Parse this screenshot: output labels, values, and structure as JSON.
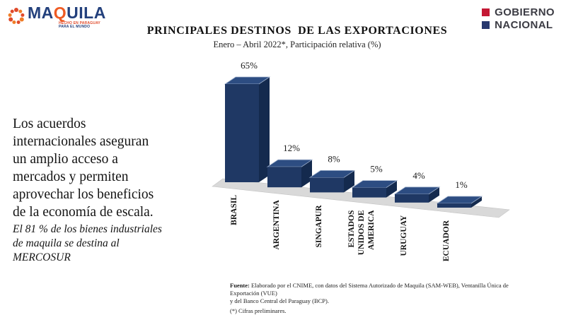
{
  "header": {
    "maquila": {
      "brand_prefix": "MA",
      "brand_accent": "Q",
      "brand_suffix": "UILA",
      "tagline_line1": "HECHO EN PARAGUAY",
      "tagline_line2": "PARA EL MUNDO",
      "ring_color_a": "#e04a2a",
      "ring_color_b": "#f07d26"
    },
    "gobierno": {
      "line1": "GOBIERNO",
      "line2": "NACIONAL",
      "red_square": "#c41834",
      "blue_square": "#27386e"
    }
  },
  "title": "PRINCIPALES DESTINOS  DE LAS EXPORTACIONES",
  "subtitle": "Enero – Abril 2022*, Participación relativa (%)",
  "side_text": {
    "paragraph": "Los acuerdos internacionales aseguran un amplio acceso a mercados y permiten aprovechar los beneficios de la economía de escala.",
    "note": "El 81 % de los bienes industriales de maquila se destina al MERCOSUR"
  },
  "chart_data": {
    "type": "bar",
    "style": "3d-column",
    "title": "PRINCIPALES DESTINOS  DE LAS EXPORTACIONES",
    "subtitle": "Enero – Abril 2022*, Participación relativa (%)",
    "categories": [
      "BRASIL",
      "ARGENTINA",
      "SINGAPUR",
      "ESTADOS UNIDOS DE AMERICA",
      "URUGUAY",
      "ECUADOR"
    ],
    "category_lines": [
      [
        "BRASIL"
      ],
      [
        "ARGENTINA"
      ],
      [
        "SINGAPUR"
      ],
      [
        "ESTADOS",
        "UNIDOS DE",
        "AMERICA"
      ],
      [
        "URUGUAY"
      ],
      [
        "ECUADOR"
      ]
    ],
    "values": [
      65,
      12,
      8,
      5,
      4,
      1
    ],
    "labels": [
      "65%",
      "12%",
      "8%",
      "5%",
      "4%",
      "1%"
    ],
    "ylim": [
      0,
      65
    ],
    "grid": false,
    "legend": false,
    "bar_color_front": "#1f3864",
    "bar_color_side": "#142a4e",
    "bar_color_top": "#2d4d82",
    "bar_edge_highlight": "#9fb0cc",
    "floor_color": "#d9d9d9",
    "floor_edge": "#c3c3c3"
  },
  "footer": {
    "source_label": "Fuente:",
    "source_line1": " Elaborado por el CNIME, con datos del Sistema Autorizado de Maquila (SAM-WEB), Ventanilla Única de Exportación (VUE)",
    "source_line2": "y del Banco Central del Paraguay (BCP).",
    "note": "(*) Cifras preliminares."
  }
}
